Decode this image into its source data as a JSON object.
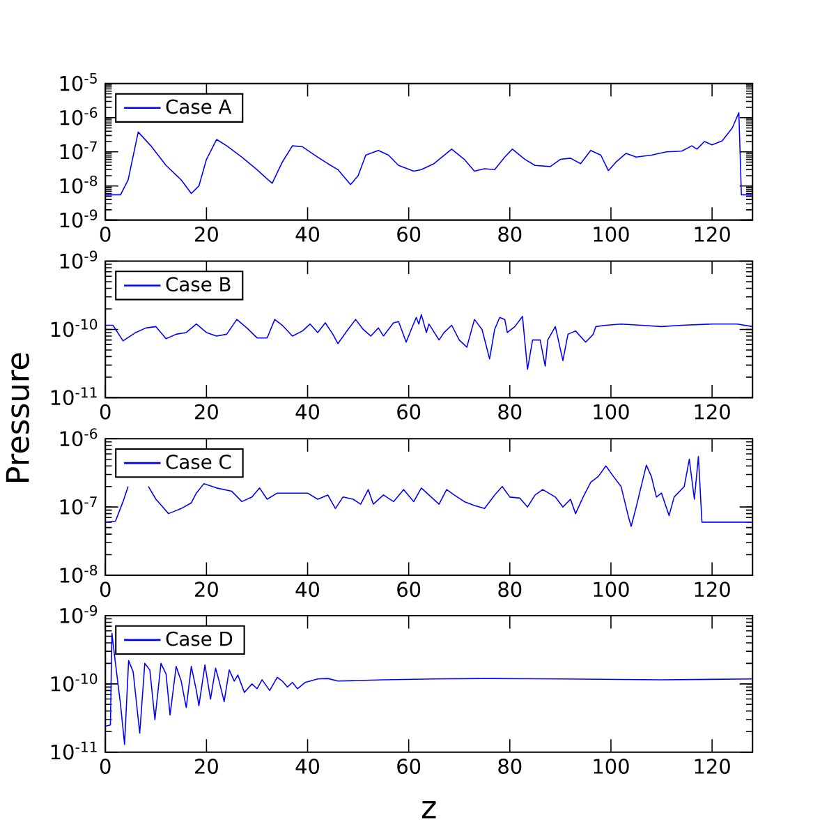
{
  "chart_data": [
    {
      "type": "line",
      "log": "y",
      "legend": "top left",
      "xlim": [
        0,
        128
      ],
      "xticks": [
        0,
        20,
        40,
        60,
        80,
        100,
        120
      ],
      "ylim": [
        1e-09,
        1e-05
      ],
      "yticks": [
        {
          "value": 1e-09,
          "label": "10$^{-9}$"
        },
        {
          "value": 1e-08,
          "label": "10$^{-8}$"
        },
        {
          "value": 1e-07,
          "label": "10$^{-7}$"
        },
        {
          "value": 1e-06,
          "label": "10$^{-6}$"
        },
        {
          "value": 1e-05,
          "label": "10$^{-5}$"
        }
      ],
      "series": [
        {
          "name": "Case A",
          "color": "#0000ff",
          "x": [
            0,
            3,
            4.5,
            6.5,
            9,
            12,
            15,
            17,
            18.5,
            20,
            22,
            24,
            27,
            30,
            32,
            33,
            35,
            37,
            39,
            42,
            44,
            46,
            48.5,
            50,
            51.5,
            54,
            56,
            58,
            61,
            62.5,
            65,
            68.5,
            71,
            73,
            75,
            77,
            79,
            80.5,
            83,
            85,
            88,
            90,
            92,
            94,
            96,
            98,
            99.5,
            101,
            103,
            105,
            108,
            111,
            114,
            116,
            117,
            118.5,
            120,
            122,
            124,
            125.3,
            125.8,
            128
          ],
          "values": [
            5.5e-09,
            5.5e-09,
            1.5e-08,
            3.8e-07,
            1.5e-07,
            4e-08,
            1.5e-08,
            6e-09,
            1e-08,
            6e-08,
            2.3e-07,
            1.5e-07,
            7e-08,
            3e-08,
            1.6e-08,
            1.2e-08,
            5e-08,
            1.5e-07,
            1.4e-07,
            7e-08,
            4.5e-08,
            3e-08,
            1.1e-08,
            2e-08,
            8e-08,
            1.1e-07,
            8e-08,
            4e-08,
            2.7e-08,
            3e-08,
            4.5e-08,
            1.2e-07,
            6e-08,
            2.7e-08,
            3.2e-08,
            3e-08,
            7e-08,
            1.2e-07,
            6e-08,
            4e-08,
            3.7e-08,
            6e-08,
            6.5e-08,
            4.5e-08,
            1.1e-07,
            8e-08,
            2.8e-08,
            5e-08,
            9e-08,
            7e-08,
            8e-08,
            1e-07,
            1.05e-07,
            1.5e-07,
            1.2e-07,
            2e-07,
            1.6e-07,
            2.1e-07,
            5e-07,
            1.4e-06,
            5.5e-09,
            5.5e-09
          ]
        }
      ]
    },
    {
      "type": "line",
      "log": "y",
      "legend": "top left",
      "xlim": [
        0,
        128
      ],
      "xticks": [
        0,
        20,
        40,
        60,
        80,
        100,
        120
      ],
      "ylim": [
        1e-11,
        1e-09
      ],
      "ylabel": "Pressure",
      "yticks": [
        {
          "value": 1e-11,
          "label": "10$^{-11}$"
        },
        {
          "value": 1e-10,
          "label": "10$^{-10}$"
        },
        {
          "value": 1e-09,
          "label": "10$^{-9}$"
        }
      ],
      "series": [
        {
          "name": "Case B",
          "color": "#0000ff",
          "x": [
            0,
            1.5,
            3.5,
            6,
            8,
            10,
            12,
            14,
            16,
            18,
            20,
            22,
            24,
            26,
            28,
            30,
            32,
            33.5,
            35,
            37,
            39,
            40.5,
            42,
            43.5,
            45,
            46,
            48,
            49.5,
            51,
            52.5,
            54,
            55,
            57,
            58,
            59.5,
            60.5,
            61.5,
            62,
            62.5,
            63.5,
            64,
            66,
            67,
            68.5,
            70,
            71.5,
            73,
            74.5,
            76,
            77,
            78,
            79,
            79.5,
            81,
            82.5,
            83.5,
            84.5,
            86,
            87,
            87.5,
            89,
            90.5,
            91.5,
            93,
            95,
            96.5,
            97,
            99,
            102,
            106,
            110,
            114,
            120,
            125,
            128
          ],
          "values": [
            1.15e-10,
            1.15e-10,
            6.8e-11,
            9e-11,
            1.05e-10,
            1.1e-10,
            7.3e-11,
            8.5e-11,
            9e-11,
            1.2e-10,
            9e-11,
            8e-11,
            8.5e-11,
            1.4e-10,
            1.05e-10,
            7.5e-11,
            7.5e-11,
            1.4e-10,
            1.15e-10,
            8e-11,
            9.5e-11,
            1.2e-10,
            9e-11,
            1.25e-10,
            8.5e-11,
            6.2e-11,
            1e-10,
            1.4e-10,
            1e-10,
            8e-11,
            1.05e-10,
            8e-11,
            1.25e-10,
            1.3e-10,
            6.5e-11,
            1e-10,
            1.5e-10,
            1.2e-10,
            1.65e-10,
            9e-11,
            1.2e-10,
            7e-11,
            9e-11,
            1.15e-10,
            7e-11,
            5.5e-11,
            1.4e-10,
            1e-10,
            3.7e-11,
            1e-10,
            1.5e-10,
            1.4e-10,
            9e-11,
            1.1e-10,
            1.55e-10,
            2.6e-11,
            7e-11,
            7e-11,
            2.9e-11,
            7e-11,
            1.1e-10,
            3.5e-11,
            8.5e-11,
            9.5e-11,
            6.5e-11,
            8.5e-11,
            1.1e-10,
            1.15e-10,
            1.2e-10,
            1.15e-10,
            1.1e-10,
            1.15e-10,
            1.2e-10,
            1.2e-10,
            1.1e-10
          ]
        }
      ]
    },
    {
      "type": "line",
      "log": "y",
      "legend": "top left",
      "xlim": [
        0,
        128
      ],
      "xticks": [
        0,
        20,
        40,
        60,
        80,
        100,
        120
      ],
      "ylim": [
        1e-08,
        1e-06
      ],
      "yticks": [
        {
          "value": 1e-08,
          "label": "10$^{-8}$"
        },
        {
          "value": 1e-07,
          "label": "10$^{-7}$"
        },
        {
          "value": 1e-06,
          "label": "10$^{-6}$"
        }
      ],
      "series": [
        {
          "name": "Case C",
          "color": "#0000ff",
          "x": [
            0,
            2,
            3.5,
            4.5,
            6.5,
            8.5,
            10,
            12.5,
            15,
            17,
            18,
            19.5,
            22,
            25,
            27,
            29,
            30.5,
            32,
            34,
            37,
            40,
            42,
            44,
            45.5,
            47,
            49,
            50.5,
            52,
            53,
            55,
            57,
            59,
            61,
            62.5,
            64,
            66,
            67.5,
            69,
            71,
            73,
            75,
            77,
            78.5,
            80,
            82,
            83.5,
            85,
            86.5,
            89,
            90.5,
            92,
            93,
            94.5,
            96,
            97.5,
            99,
            100.5,
            102,
            103.5,
            104,
            105,
            107,
            108,
            109,
            110,
            111.5,
            112.5,
            114.5,
            115.5,
            116.5,
            117.3,
            118,
            128
          ],
          "values": [
            6e-08,
            6.2e-08,
            1.2e-07,
            2e-07,
            null,
            2e-07,
            1.3e-07,
            8e-08,
            9.5e-08,
            1.15e-07,
            1.6e-07,
            2.2e-07,
            1.9e-07,
            1.7e-07,
            1.2e-07,
            1.4e-07,
            1.9e-07,
            1.3e-07,
            1.6e-07,
            1.6e-07,
            1.6e-07,
            1.3e-07,
            1.5e-07,
            9.5e-08,
            1.4e-07,
            1.3e-07,
            1.1e-07,
            1.8e-07,
            1.1e-07,
            1.5e-07,
            1.2e-07,
            1.8e-07,
            1.2e-07,
            1.9e-07,
            1.5e-07,
            1.1e-07,
            1.8e-07,
            1.5e-07,
            1.2e-07,
            1.05e-07,
            9.5e-08,
            1.5e-07,
            2e-07,
            1.4e-07,
            1.35e-07,
            1e-07,
            1.5e-07,
            1.8e-07,
            1.4e-07,
            1e-07,
            1.3e-07,
            8e-08,
            1.4e-07,
            2.3e-07,
            2.8e-07,
            4e-07,
            2.8e-07,
            2e-07,
            7e-08,
            5.2e-08,
            1e-07,
            4.1e-07,
            2.8e-07,
            1.4e-07,
            1.6e-07,
            7.5e-08,
            1.4e-07,
            2e-07,
            5e-07,
            1.3e-07,
            5.5e-07,
            6e-08,
            6e-08
          ]
        }
      ]
    },
    {
      "type": "line",
      "log": "y",
      "legend": "top left",
      "xlim": [
        0,
        128
      ],
      "xticks": [
        0,
        20,
        40,
        60,
        80,
        100,
        120
      ],
      "ylim": [
        1e-11,
        1e-09
      ],
      "xlabel": "z",
      "yticks": [
        {
          "value": 1e-11,
          "label": "10$^{-11}$"
        },
        {
          "value": 1e-10,
          "label": "10$^{-10}$"
        },
        {
          "value": 1e-09,
          "label": "10$^{-9}$"
        }
      ],
      "series": [
        {
          "name": "Case D",
          "color": "#0000ff",
          "x": [
            0,
            1,
            1.3,
            2,
            3,
            3.8,
            4.6,
            5.5,
            6.8,
            7.8,
            8.8,
            9.8,
            11,
            12,
            12.8,
            14,
            15,
            16,
            17,
            18,
            18.5,
            19.7,
            20.8,
            21.8,
            22.5,
            23.5,
            24.5,
            25.5,
            26.2,
            27.5,
            29,
            30,
            31,
            32.5,
            34,
            35,
            36,
            37,
            38,
            39.5,
            42,
            44,
            46,
            50,
            55,
            65,
            75,
            90,
            110,
            128
          ],
          "values": [
            2.4e-11,
            2.5e-11,
            5.5e-10,
            2e-10,
            5e-11,
            1.3e-11,
            2.2e-10,
            1.5e-10,
            1.9e-11,
            2e-10,
            1.6e-10,
            3e-11,
            2e-10,
            1.4e-10,
            3.5e-11,
            1.8e-10,
            1.1e-10,
            4.5e-11,
            1.8e-10,
            8e-11,
            4.8e-11,
            1.9e-10,
            6e-11,
            1.7e-10,
            1.1e-10,
            5.5e-11,
            1.6e-10,
            1.1e-10,
            1.35e-10,
            7.5e-11,
            1e-10,
            8.5e-11,
            1.15e-10,
            8e-11,
            1.25e-10,
            1.1e-10,
            9e-11,
            1.05e-10,
            8.5e-11,
            1.05e-10,
            1.18e-10,
            1.2e-10,
            1.1e-10,
            1.12e-10,
            1.15e-10,
            1.18e-10,
            1.2e-10,
            1.18e-10,
            1.15e-10,
            1.18e-10
          ]
        }
      ]
    }
  ]
}
